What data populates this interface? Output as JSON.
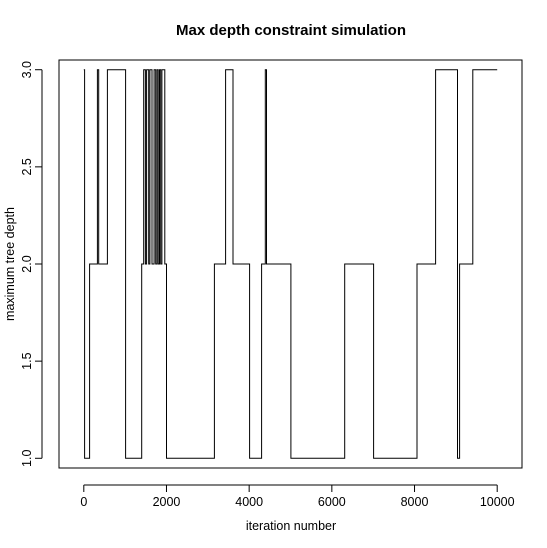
{
  "chart_data": {
    "type": "line",
    "title": "Max depth constraint simulation",
    "xlabel": "iteration number",
    "ylabel": "maximum tree depth",
    "xlim": [
      -600,
      10600
    ],
    "ylim": [
      0.95,
      3.05
    ],
    "x_ticks": [
      0,
      2000,
      4000,
      6000,
      8000,
      10000
    ],
    "x_tick_labels": [
      "0",
      "2000",
      "4000",
      "6000",
      "8000",
      "10000"
    ],
    "y_ticks": [
      1.0,
      1.5,
      2.0,
      2.5,
      3.0
    ],
    "y_tick_labels": [
      "1.0",
      "1.5",
      "2.0",
      "2.5",
      "3.0"
    ],
    "line_color": "#000000",
    "grid": false,
    "series": [
      {
        "values_as": "step",
        "points": [
          [
            0,
            3
          ],
          [
            20,
            1
          ],
          [
            130,
            1
          ],
          [
            140,
            2
          ],
          [
            320,
            2
          ],
          [
            330,
            3
          ],
          [
            350,
            3
          ],
          [
            360,
            2
          ],
          [
            560,
            2
          ],
          [
            570,
            3
          ],
          [
            1000,
            3
          ],
          [
            1010,
            1
          ],
          [
            1390,
            1
          ],
          [
            1400,
            2
          ],
          [
            1440,
            2
          ],
          [
            1450,
            3
          ],
          [
            1480,
            3
          ],
          [
            1490,
            2
          ],
          [
            1510,
            2
          ],
          [
            1520,
            3
          ],
          [
            1560,
            3
          ],
          [
            1570,
            2
          ],
          [
            1590,
            2
          ],
          [
            1600,
            3
          ],
          [
            1640,
            3
          ],
          [
            1650,
            2
          ],
          [
            1690,
            2
          ],
          [
            1700,
            3
          ],
          [
            1730,
            3
          ],
          [
            1740,
            2
          ],
          [
            1760,
            2
          ],
          [
            1770,
            3
          ],
          [
            1790,
            3
          ],
          [
            1800,
            2
          ],
          [
            1820,
            2
          ],
          [
            1830,
            3
          ],
          [
            1850,
            3
          ],
          [
            1860,
            2
          ],
          [
            1880,
            2
          ],
          [
            1890,
            3
          ],
          [
            1950,
            3
          ],
          [
            1960,
            2
          ],
          [
            1990,
            2
          ],
          [
            2000,
            1
          ],
          [
            3150,
            1
          ],
          [
            3160,
            2
          ],
          [
            3420,
            2
          ],
          [
            3430,
            3
          ],
          [
            3600,
            3
          ],
          [
            3610,
            2
          ],
          [
            4000,
            2
          ],
          [
            4010,
            1
          ],
          [
            4290,
            1
          ],
          [
            4300,
            2
          ],
          [
            4380,
            2
          ],
          [
            4390,
            3
          ],
          [
            4410,
            3
          ],
          [
            4420,
            2
          ],
          [
            5000,
            2
          ],
          [
            5010,
            1
          ],
          [
            6300,
            1
          ],
          [
            6310,
            2
          ],
          [
            7000,
            2
          ],
          [
            7010,
            1
          ],
          [
            8050,
            1
          ],
          [
            8060,
            2
          ],
          [
            8500,
            2
          ],
          [
            8510,
            3
          ],
          [
            8950,
            3
          ],
          [
            9040,
            1
          ],
          [
            9080,
            1
          ],
          [
            9090,
            2
          ],
          [
            9400,
            2
          ],
          [
            9410,
            3
          ],
          [
            10000,
            3
          ]
        ]
      }
    ]
  }
}
